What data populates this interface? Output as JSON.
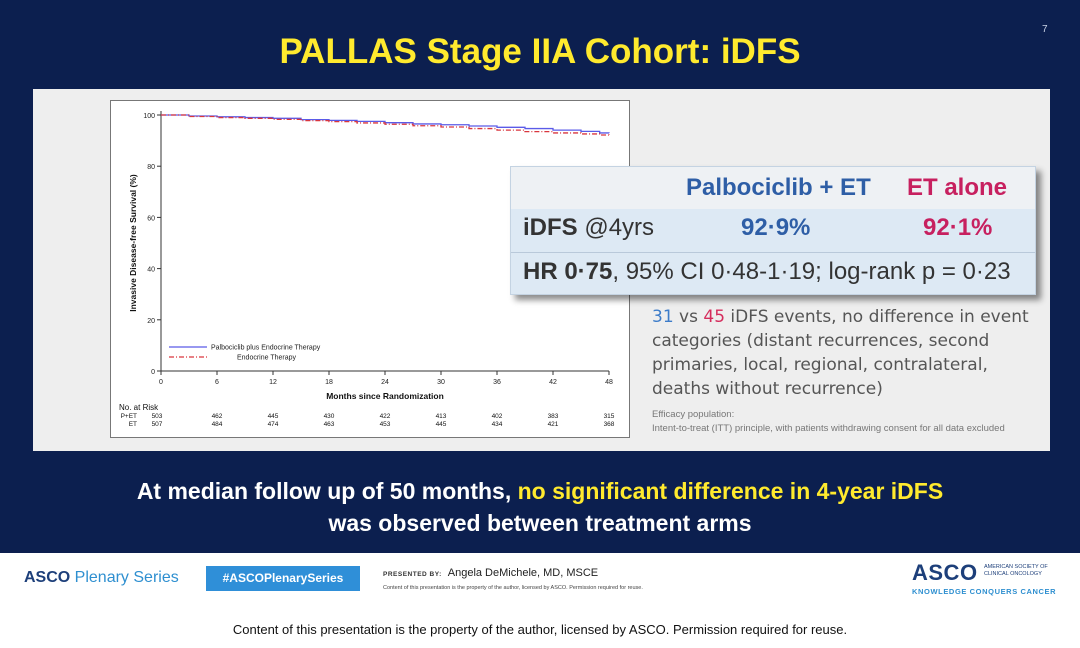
{
  "slide": {
    "number": "7",
    "title": "PALLAS Stage IIA Cohort:  iDFS"
  },
  "chart_data": {
    "type": "line",
    "xlabel": "Months since Randomization",
    "ylabel": "Invasive Disease-free Survival (%)",
    "xlim": [
      0,
      48
    ],
    "ylim": [
      0,
      100
    ],
    "x_ticks": [
      0,
      6,
      12,
      18,
      24,
      30,
      36,
      42,
      48
    ],
    "y_ticks": [
      0,
      20,
      40,
      60,
      80,
      100
    ],
    "legend_position": "bottom-left",
    "series": [
      {
        "name": "Palbociclib plus Endocrine Therapy",
        "color": "#5b5be8",
        "line": "solid",
        "x": [
          0,
          3,
          6,
          9,
          12,
          15,
          18,
          21,
          24,
          27,
          30,
          33,
          36,
          39,
          42,
          45,
          47,
          48
        ],
        "y": [
          100,
          99.6,
          99.3,
          99.0,
          98.7,
          98.2,
          97.9,
          97.5,
          97.0,
          96.5,
          96.2,
          95.7,
          95.2,
          94.7,
          94.1,
          93.6,
          93.0,
          92.9
        ]
      },
      {
        "name": "Endocrine Therapy",
        "color": "#d9363e",
        "line": "dashdot",
        "x": [
          0,
          3,
          6,
          9,
          12,
          15,
          18,
          21,
          24,
          27,
          30,
          33,
          36,
          39,
          42,
          45,
          47,
          48
        ],
        "y": [
          100,
          99.4,
          99.0,
          98.7,
          98.3,
          97.8,
          97.4,
          96.9,
          96.4,
          95.8,
          95.3,
          94.7,
          94.1,
          93.5,
          93.0,
          92.6,
          92.2,
          92.1
        ]
      }
    ],
    "at_risk": {
      "title": "No. at Risk",
      "rows": [
        {
          "label": "P+ET",
          "values": [
            "503",
            "462",
            "445",
            "430",
            "422",
            "413",
            "402",
            "383",
            "315"
          ]
        },
        {
          "label": "ET",
          "values": [
            "507",
            "484",
            "474",
            "463",
            "453",
            "445",
            "434",
            "421",
            "368"
          ]
        }
      ]
    }
  },
  "results_table": {
    "col_pe": "Palbociclib + ET",
    "col_et": "ET alone",
    "row_label_bold": "iDFS",
    "row_label_rest": " @4yrs",
    "val_pe": "92·9%",
    "val_et": "92·1%",
    "hr_bold": "HR 0·75",
    "hr_rest": ", 95% CI 0·48-1·19; log-rank p = 0·23"
  },
  "events": {
    "num_pe": "31",
    "vs": " vs ",
    "num_et": "45",
    "text": " iDFS events, no difference in event categories (distant recurrences, second primaries, local, regional, contralateral, deaths without recurrence)"
  },
  "efficacy_note": {
    "line1": "Efficacy population:",
    "line2": "Intent-to-treat (ITT) principle, with patients withdrawing consent for all data excluded"
  },
  "conclusion": {
    "part1": "At median follow up of 50 months, ",
    "part2": "no significant difference in 4-year iDFS",
    "part3": "was observed between treatment arms"
  },
  "footer": {
    "asco": "ASCO",
    "plenary": " Plenary Series",
    "hashtag": "#ASCOPlenarySeries",
    "presented_by": "PRESENTED BY:",
    "presenter": "Angela DeMichele,  MD, MSCE",
    "content_note": "Content of this presentation is the property of the author, licensed by ASCO. Permission required for reuse.",
    "logo_word": "ASCO",
    "logo_society": "AMERICAN SOCIETY OF CLINICAL ONCOLOGY",
    "logo_tagline": "KNOWLEDGE CONQUERS CANCER"
  },
  "bottom_note": "Content of this presentation is the property of the author, licensed by ASCO. Permission required for reuse."
}
